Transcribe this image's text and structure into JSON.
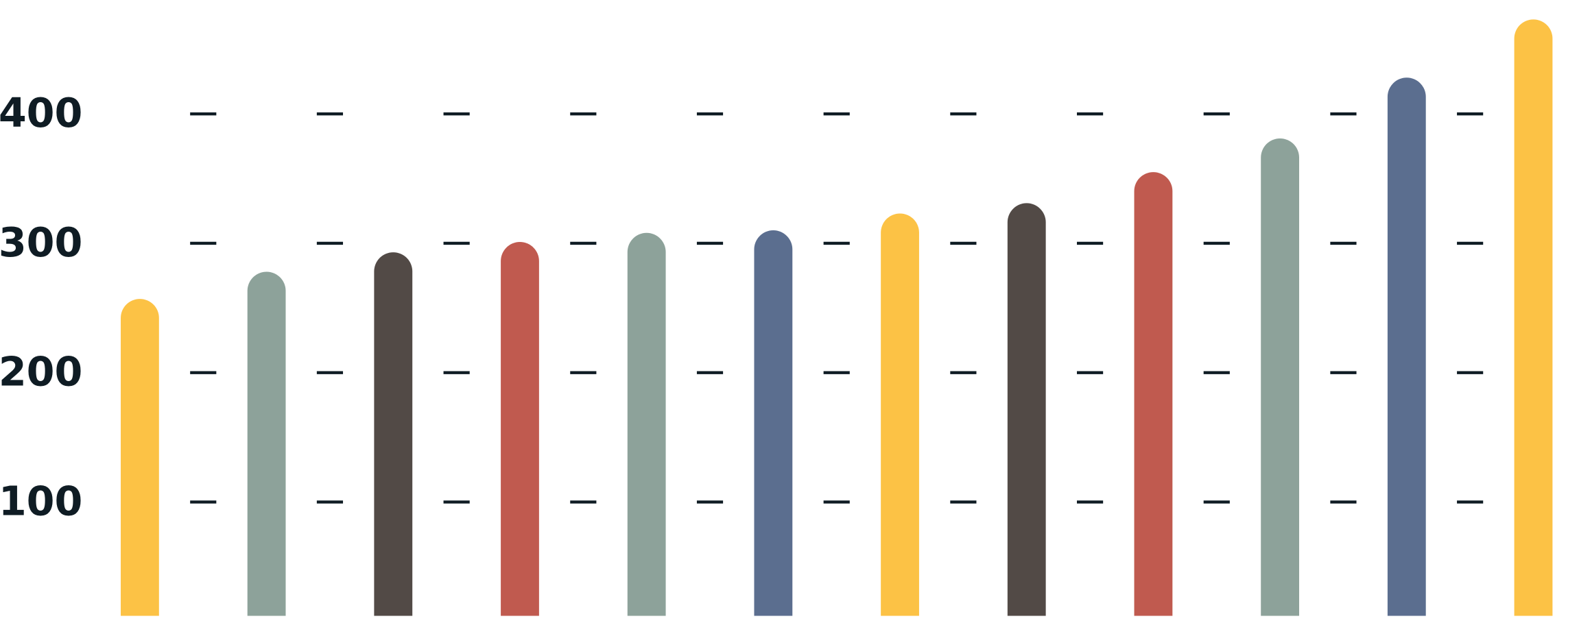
{
  "chart_data": {
    "type": "bar",
    "categories": [
      null,
      null,
      null,
      null,
      null,
      null,
      null,
      null,
      null,
      null,
      null,
      null
    ],
    "values": [
      257,
      278,
      293,
      301,
      308,
      310,
      323,
      331,
      355,
      381,
      428,
      473
    ],
    "colors": [
      "#fcc245",
      "#8da29a",
      "#524a46",
      "#c05a4f",
      "#8da29a",
      "#5b6e8f",
      "#fcc245",
      "#524a46",
      "#c05a4f",
      "#8da29a",
      "#5b6e8f",
      "#fcc245"
    ],
    "ylim": [
      12,
      488
    ],
    "yticks": [
      100,
      200,
      300,
      400
    ],
    "grid": true
  }
}
